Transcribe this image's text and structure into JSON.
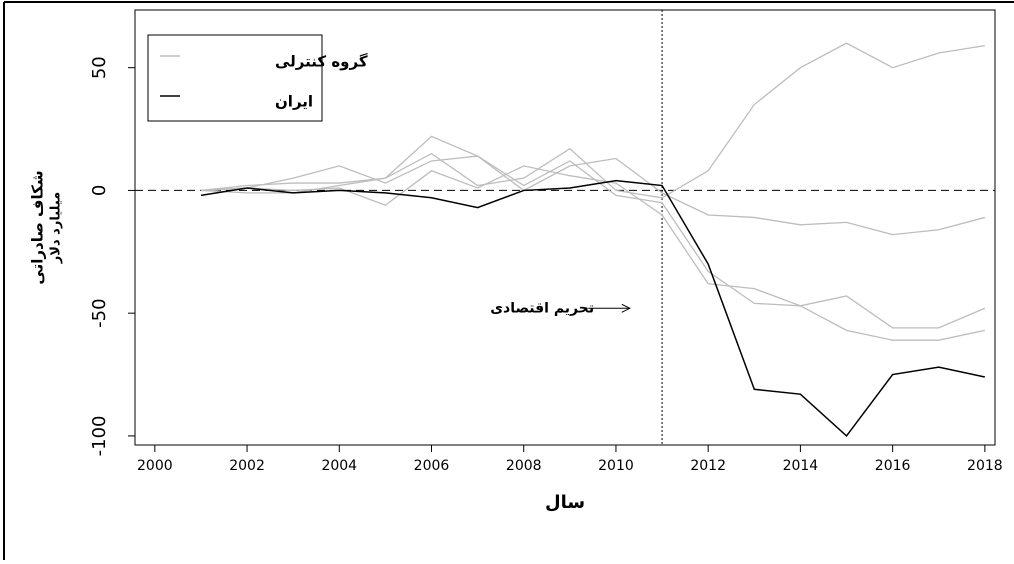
{
  "chart_data": {
    "type": "line",
    "xlabel": "سال",
    "ylabel": [
      "شکاف صادراتی",
      "میلیارد دلار"
    ],
    "x": [
      2001,
      2002,
      2003,
      2004,
      2005,
      2006,
      2007,
      2008,
      2009,
      2010,
      2011,
      2012,
      2013,
      2014,
      2015,
      2016,
      2017,
      2018
    ],
    "series": [
      {
        "name": "گروه کنترلی",
        "color": "#bdbdbd",
        "values": [
          [
            0,
            2,
            3,
            3,
            5,
            15,
            2,
            5,
            17,
            0,
            -3,
            8,
            35,
            50,
            60,
            50,
            56,
            59
          ],
          [
            0,
            -1,
            -1,
            2,
            5,
            22,
            14,
            0,
            10,
            13,
            -1,
            -10,
            -11,
            -14,
            -13,
            -18,
            -16,
            -11
          ],
          [
            0,
            1,
            5,
            10,
            3,
            12,
            14,
            2,
            12,
            -2,
            -5,
            -33,
            -46,
            -47,
            -43,
            -56,
            -56,
            -48
          ],
          [
            0,
            1,
            0,
            1,
            -6,
            8,
            1,
            10,
            6,
            3,
            -10,
            -38,
            -40,
            -47,
            -57,
            -61,
            -61,
            -57
          ]
        ]
      },
      {
        "name": "ایران",
        "color": "#000000",
        "values": [
          [
            -2,
            1,
            -1,
            0,
            -1,
            -3,
            -7,
            0,
            1,
            4,
            2,
            -30,
            -81,
            -83,
            -100,
            -75,
            -72,
            -76
          ]
        ]
      }
    ],
    "xlim": [
      1999.57,
      2018.22
    ],
    "ylim": [
      -103.7,
      73.5
    ],
    "xticks": [
      2000,
      2002,
      2004,
      2006,
      2008,
      2010,
      2012,
      2014,
      2016,
      2018
    ],
    "yticks": [
      -100,
      -50,
      0,
      50
    ],
    "hline": 0,
    "event_x": 2011,
    "annotation": {
      "text": "تحریم اقتصادی",
      "x": 2008.4,
      "y": -48,
      "arrow_from": 2009.4,
      "arrow_to": 2010.3
    },
    "legend": "top-left"
  }
}
